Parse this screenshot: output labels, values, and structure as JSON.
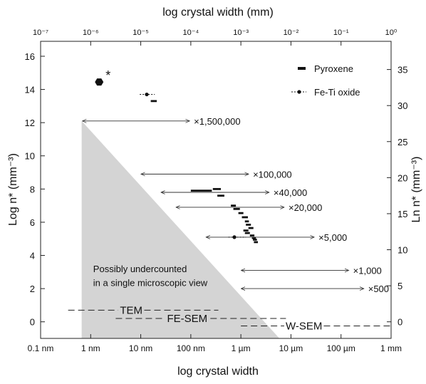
{
  "chart_data": {
    "type": "scatter",
    "xlabel_bottom": "log crystal width",
    "xlabel_top": "log crystal width (mm)",
    "ylabel_left": "Log n* (mm⁻³)",
    "ylabel_right": "Ln n* (mm⁻³)",
    "x_bottom_ticks": [
      {
        "log_nm": -1,
        "label": "0.1 nm"
      },
      {
        "log_nm": 0,
        "label": "1 nm"
      },
      {
        "log_nm": 1,
        "label": "10 nm"
      },
      {
        "log_nm": 2,
        "label": "100 nm"
      },
      {
        "log_nm": 3,
        "label": "1 µm"
      },
      {
        "log_nm": 4,
        "label": "10 µm"
      },
      {
        "log_nm": 5,
        "label": "100 µm"
      },
      {
        "log_nm": 6,
        "label": "1 mm"
      }
    ],
    "x_top_ticks": [
      {
        "exp": -7,
        "label": "10⁻⁷"
      },
      {
        "exp": -6,
        "label": "10⁻⁶"
      },
      {
        "exp": -5,
        "label": "10⁻⁵"
      },
      {
        "exp": -4,
        "label": "10⁻⁴"
      },
      {
        "exp": -3,
        "label": "10⁻³"
      },
      {
        "exp": -2,
        "label": "10⁻²"
      },
      {
        "exp": -1,
        "label": "10⁻¹"
      },
      {
        "exp": 0,
        "label": "10⁰"
      }
    ],
    "xlim_log_nm": [
      -1,
      6
    ],
    "ylim_left": [
      -1,
      16.9
    ],
    "y_left_ticks": [
      0,
      2,
      4,
      6,
      8,
      10,
      12,
      14,
      16
    ],
    "y_right_ticks": [
      0,
      5,
      10,
      15,
      20,
      25,
      30,
      35
    ],
    "legend": {
      "placement": "top-right",
      "items": [
        {
          "name": "Pyroxene",
          "style": "bar"
        },
        {
          "name": "Fe-Ti oxide",
          "style": "dashed-dot"
        }
      ]
    },
    "shaded_region": {
      "label_lines": [
        "Possibly undercounted",
        "in a single microscopic view"
      ],
      "vertices_log_nm_logn": [
        [
          -0.18,
          12.1
        ],
        [
          -0.18,
          -1.0
        ],
        [
          3.77,
          -1.0
        ]
      ],
      "fill": "#d4d4d4"
    },
    "magnification_arrows": [
      {
        "label": "×1,500,000",
        "x_start": -0.18,
        "x_end": 1.99,
        "y": 12.1
      },
      {
        "label": "×100,000",
        "x_start": 0.99,
        "x_end": 3.17,
        "y": 8.9
      },
      {
        "label": "×40,000",
        "x_start": 1.39,
        "x_end": 3.58,
        "y": 7.8
      },
      {
        "label": "×20,000",
        "x_start": 1.69,
        "x_end": 3.88,
        "y": 6.9
      },
      {
        "label": "×5,000",
        "x_start": 2.29,
        "x_end": 4.48,
        "y": 5.1
      },
      {
        "label": "×1,000",
        "x_start": 2.99,
        "x_end": 5.17,
        "y": 3.1
      },
      {
        "label": "×500",
        "x_start": 2.99,
        "x_end": 5.47,
        "y": 2.0
      }
    ],
    "methods": [
      {
        "label": "TEM",
        "x_start": -0.45,
        "x_end": 2.55,
        "y": 0.7
      },
      {
        "label": "FE-SEM",
        "x_start": 0.5,
        "x_end": 3.9,
        "y": 0.2
      },
      {
        "label": "W-SEM",
        "x_start": 3.0,
        "x_end": 6.0,
        "y": -0.25
      }
    ],
    "pyroxene": [
      {
        "x": [
          0.12,
          0.22
        ],
        "y": 14.45
      },
      {
        "x": [
          1.2,
          1.32
        ],
        "y": 13.3
      },
      {
        "x": [
          2.0,
          2.42
        ],
        "y": 7.9
      },
      {
        "x": [
          2.44,
          2.6
        ],
        "y": 8.0
      },
      {
        "x": [
          2.53,
          2.67
        ],
        "y": 7.6
      },
      {
        "x": [
          2.8,
          2.9
        ],
        "y": 7.0
      },
      {
        "x": [
          2.85,
          2.98
        ],
        "y": 6.8
      },
      {
        "x": [
          2.95,
          3.05
        ],
        "y": 6.55
      },
      {
        "x": [
          3.02,
          3.14
        ],
        "y": 6.3
      },
      {
        "x": [
          3.08,
          3.16
        ],
        "y": 6.05
      },
      {
        "x": [
          3.1,
          3.2
        ],
        "y": 5.85
      },
      {
        "x": [
          3.15,
          3.25
        ],
        "y": 5.65
      },
      {
        "x": [
          3.05,
          3.15
        ],
        "y": 5.5
      },
      {
        "x": [
          3.08,
          3.18
        ],
        "y": 5.35
      },
      {
        "x": [
          3.18,
          3.27
        ],
        "y": 5.2
      },
      {
        "x": [
          3.22,
          3.3
        ],
        "y": 5.05
      },
      {
        "x": [
          3.24,
          3.32
        ],
        "y": 4.95
      },
      {
        "x": [
          3.26,
          3.34
        ],
        "y": 4.8
      }
    ],
    "fe_ti_oxide": [
      {
        "x": 1.12,
        "y": 13.7,
        "x_err": [
          0.98,
          1.28
        ]
      },
      {
        "x": 2.87,
        "y": 5.1,
        "x_err": [
          2.75,
          3.1
        ]
      }
    ],
    "asterisk_marker": {
      "x": 0.17,
      "y": 14.45,
      "label": "*"
    }
  }
}
